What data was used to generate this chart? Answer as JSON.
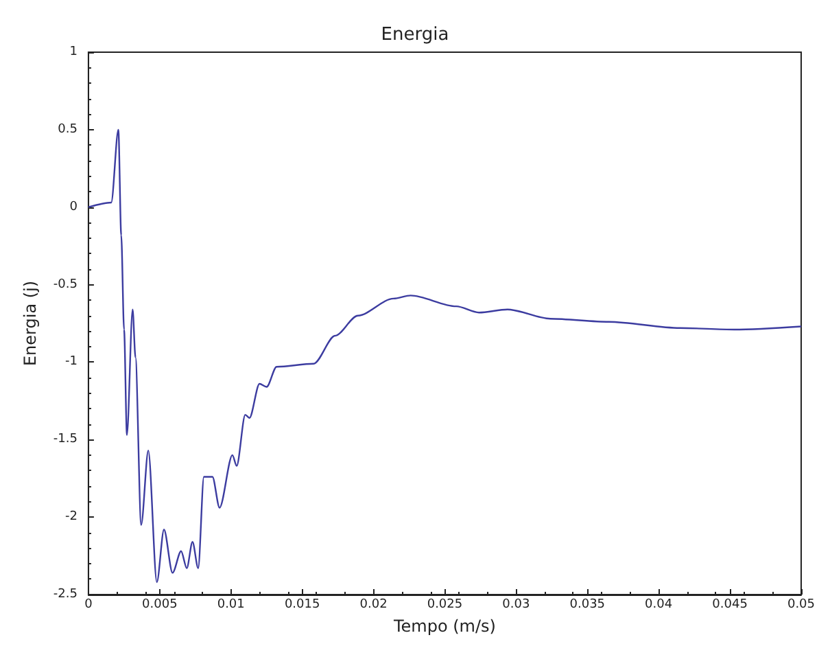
{
  "chart_data": {
    "type": "line",
    "title": "Energia",
    "xlabel": "Tempo (m/s)",
    "ylabel": "Energia (j)",
    "xlim": [
      0,
      0.05
    ],
    "ylim": [
      -2.5,
      1
    ],
    "xticks": [
      0,
      0.005,
      0.01,
      0.015,
      0.02,
      0.025,
      0.03,
      0.035,
      0.04,
      0.045,
      0.05
    ],
    "yticks": [
      -2.5,
      -2,
      -1.5,
      -1,
      -0.5,
      0,
      0.5,
      1
    ],
    "grid": false,
    "marker": "none",
    "line_style": "solid",
    "series": [
      {
        "color": "#3c3ca0",
        "x": [
          0,
          0.0016,
          0.0021,
          0.0023,
          0.0025,
          0.0027,
          0.0031,
          0.0033,
          0.0037,
          0.0042,
          0.0048,
          0.0053,
          0.0059,
          0.0065,
          0.0069,
          0.0073,
          0.0077,
          0.0081,
          0.0087,
          0.0092,
          0.0101,
          0.0104,
          0.011,
          0.0113,
          0.012,
          0.0125,
          0.0132,
          0.0158,
          0.0173,
          0.0189,
          0.0214,
          0.0226,
          0.0258,
          0.0274,
          0.0294,
          0.0324,
          0.0365,
          0.0415,
          0.0453,
          0.05
        ],
        "values": [
          0,
          0.03,
          0.5,
          -0.18,
          -0.79,
          -1.47,
          -0.66,
          -0.97,
          -2.05,
          -1.57,
          -2.42,
          -2.08,
          -2.36,
          -2.22,
          -2.33,
          -2.16,
          -2.33,
          -1.74,
          -1.74,
          -1.94,
          -1.6,
          -1.67,
          -1.34,
          -1.36,
          -1.14,
          -1.16,
          -1.03,
          -1.01,
          -0.83,
          -0.7,
          -0.59,
          -0.57,
          -0.64,
          -0.68,
          -0.66,
          -0.72,
          -0.74,
          -0.78,
          -0.79,
          -0.77
        ]
      }
    ]
  }
}
